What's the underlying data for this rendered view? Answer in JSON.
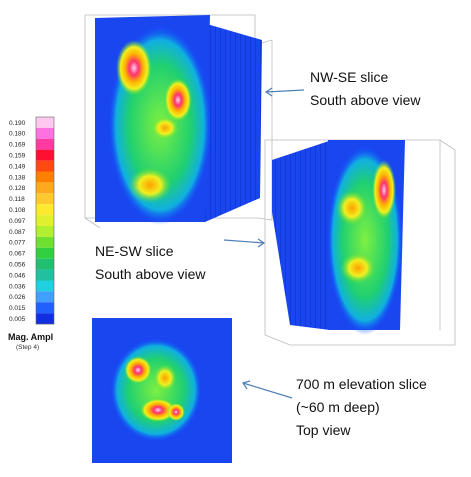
{
  "colorbar": {
    "labels": [
      "0.190",
      "0.180",
      "0.169",
      "0.159",
      "0.149",
      "0.138",
      "0.128",
      "0.118",
      "0.108",
      "0.097",
      "0.087",
      "0.077",
      "0.067",
      "0.056",
      "0.046",
      "0.036",
      "0.026",
      "0.015",
      "0.005"
    ],
    "title": "Mag. Ampl",
    "subtitle": "(Step 4)"
  },
  "annotations": [
    {
      "lines": [
        "NW-SE slice",
        "South above view"
      ]
    },
    {
      "lines": [
        "NE-SW slice",
        "South above view"
      ]
    },
    {
      "lines": [
        "700 m elevation slice",
        "(~60 m deep)",
        "Top view"
      ]
    }
  ]
}
